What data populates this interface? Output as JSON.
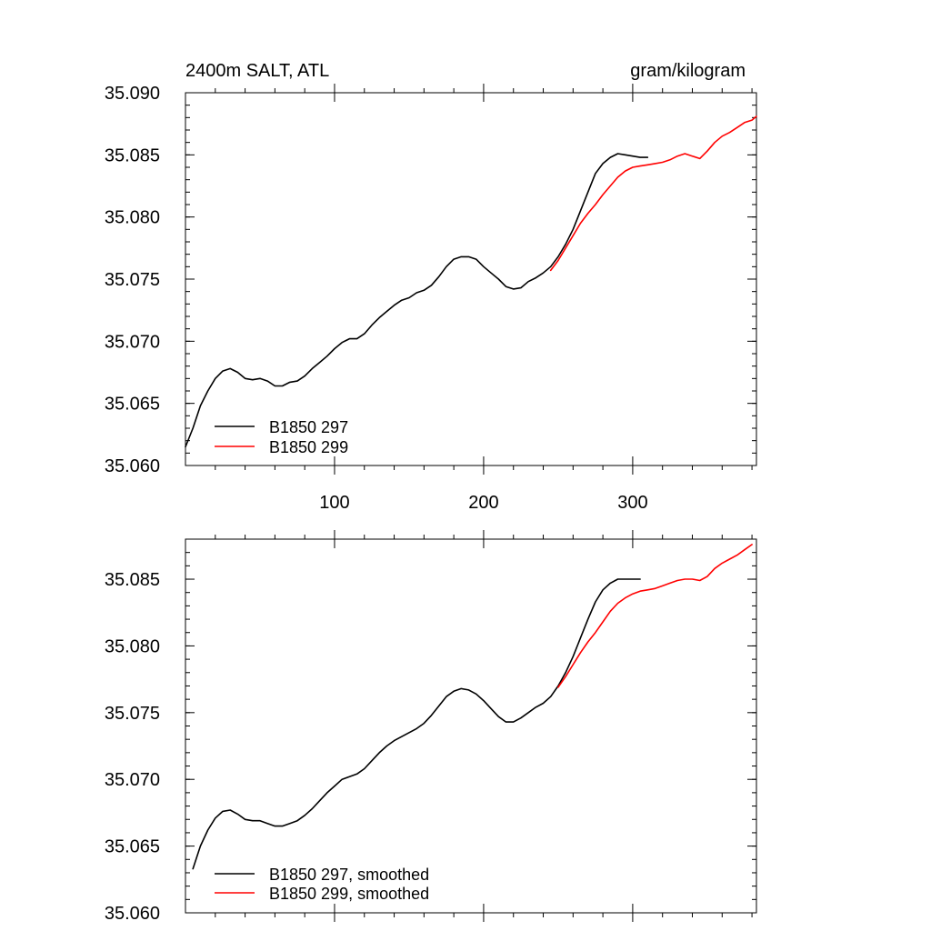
{
  "chart_data": [
    {
      "type": "line",
      "title_left": "2400m SALT, ATL",
      "title_right": "gram/kilogram",
      "xlabel": "",
      "ylabel": "",
      "xlim": [
        0,
        383
      ],
      "ylim": [
        35.06,
        35.09
      ],
      "xticks": [
        100,
        200,
        300
      ],
      "xtick_labels": [
        "100",
        "200",
        "300"
      ],
      "yticks": [
        35.06,
        35.065,
        35.07,
        35.075,
        35.08,
        35.085,
        35.09
      ],
      "ytick_labels": [
        "35.060",
        "35.065",
        "35.070",
        "35.075",
        "35.080",
        "35.085",
        "35.090"
      ],
      "legend_position": "bottom-left",
      "series": [
        {
          "name": "B1850 297",
          "color": "#000000",
          "x": [
            0,
            5,
            10,
            15,
            20,
            25,
            30,
            35,
            40,
            45,
            50,
            55,
            60,
            65,
            70,
            75,
            80,
            85,
            90,
            95,
            100,
            105,
            110,
            115,
            120,
            125,
            130,
            135,
            140,
            145,
            150,
            155,
            160,
            165,
            170,
            175,
            180,
            185,
            190,
            195,
            200,
            205,
            210,
            215,
            220,
            225,
            230,
            235,
            240,
            245,
            250,
            255,
            260,
            265,
            270,
            275,
            280,
            285,
            290,
            295,
            300,
            305,
            310
          ],
          "values": [
            35.0615,
            35.063,
            35.0648,
            35.066,
            35.067,
            35.0676,
            35.0678,
            35.0675,
            35.067,
            35.0669,
            35.067,
            35.0668,
            35.0664,
            35.0664,
            35.0667,
            35.0668,
            35.0672,
            35.0678,
            35.0683,
            35.0688,
            35.0694,
            35.0699,
            35.0702,
            35.0702,
            35.0706,
            35.0713,
            35.0719,
            35.0724,
            35.0729,
            35.0733,
            35.0735,
            35.0739,
            35.0741,
            35.0745,
            35.0752,
            35.076,
            35.0766,
            35.0768,
            35.0768,
            35.0766,
            35.076,
            35.0755,
            35.075,
            35.0744,
            35.0742,
            35.0743,
            35.0748,
            35.0751,
            35.0755,
            35.076,
            35.0768,
            35.0778,
            35.079,
            35.0805,
            35.082,
            35.0835,
            35.0843,
            35.0848,
            35.0851,
            35.085,
            35.0849,
            35.0848,
            35.0848
          ]
        },
        {
          "name": "B1850 299",
          "color": "#ff0000",
          "x": [
            245,
            250,
            255,
            260,
            265,
            270,
            275,
            280,
            285,
            290,
            295,
            300,
            305,
            310,
            315,
            320,
            325,
            330,
            335,
            340,
            345,
            350,
            355,
            360,
            365,
            370,
            375,
            380,
            383
          ],
          "values": [
            35.0757,
            35.0765,
            35.0775,
            35.0785,
            35.0795,
            35.0803,
            35.081,
            35.0818,
            35.0825,
            35.0832,
            35.0837,
            35.084,
            35.0841,
            35.0842,
            35.0843,
            35.0844,
            35.0846,
            35.0849,
            35.0851,
            35.0849,
            35.0847,
            35.0853,
            35.086,
            35.0865,
            35.0868,
            35.0872,
            35.0876,
            35.0878,
            35.0881
          ]
        }
      ]
    },
    {
      "type": "line",
      "title_left": "",
      "title_right": "",
      "xlabel": "",
      "ylabel": "",
      "xlim": [
        0,
        383
      ],
      "ylim": [
        35.06,
        35.088
      ],
      "xticks": [
        100,
        200,
        300
      ],
      "xtick_labels": [],
      "yticks": [
        35.06,
        35.065,
        35.07,
        35.075,
        35.08,
        35.085
      ],
      "ytick_labels": [
        "35.060",
        "35.065",
        "35.070",
        "35.075",
        "35.080",
        "35.085"
      ],
      "legend_position": "bottom-left",
      "series": [
        {
          "name": "B1850 297, smoothed",
          "color": "#000000",
          "x": [
            5,
            10,
            15,
            20,
            25,
            30,
            35,
            40,
            45,
            50,
            55,
            60,
            65,
            70,
            75,
            80,
            85,
            90,
            95,
            100,
            105,
            110,
            115,
            120,
            125,
            130,
            135,
            140,
            145,
            150,
            155,
            160,
            165,
            170,
            175,
            180,
            185,
            190,
            195,
            200,
            205,
            210,
            215,
            220,
            225,
            230,
            235,
            240,
            245,
            250,
            255,
            260,
            265,
            270,
            275,
            280,
            285,
            290,
            295,
            300,
            305
          ],
          "values": [
            35.0633,
            35.065,
            35.0662,
            35.0671,
            35.0676,
            35.0677,
            35.0674,
            35.067,
            35.0669,
            35.0669,
            35.0667,
            35.0665,
            35.0665,
            35.0667,
            35.0669,
            35.0673,
            35.0678,
            35.0684,
            35.069,
            35.0695,
            35.07,
            35.0702,
            35.0704,
            35.0708,
            35.0714,
            35.072,
            35.0725,
            35.0729,
            35.0732,
            35.0735,
            35.0738,
            35.0742,
            35.0748,
            35.0755,
            35.0762,
            35.0766,
            35.0768,
            35.0767,
            35.0764,
            35.0759,
            35.0753,
            35.0747,
            35.0743,
            35.0743,
            35.0746,
            35.075,
            35.0754,
            35.0757,
            35.0762,
            35.077,
            35.078,
            35.0792,
            35.0806,
            35.082,
            35.0833,
            35.0842,
            35.0847,
            35.085,
            35.085,
            35.085,
            35.085
          ]
        },
        {
          "name": "B1850 299, smoothed",
          "color": "#ff0000",
          "x": [
            250,
            255,
            260,
            265,
            270,
            275,
            280,
            285,
            290,
            295,
            300,
            305,
            310,
            315,
            320,
            325,
            330,
            335,
            340,
            345,
            350,
            355,
            360,
            365,
            370,
            375,
            380
          ],
          "values": [
            35.0769,
            35.0777,
            35.0786,
            35.0795,
            35.0803,
            35.081,
            35.0818,
            35.0826,
            35.0832,
            35.0836,
            35.0839,
            35.0841,
            35.0842,
            35.0843,
            35.0845,
            35.0847,
            35.0849,
            35.085,
            35.085,
            35.0849,
            35.0852,
            35.0858,
            35.0862,
            35.0865,
            35.0868,
            35.0872,
            35.0876
          ]
        }
      ]
    }
  ]
}
